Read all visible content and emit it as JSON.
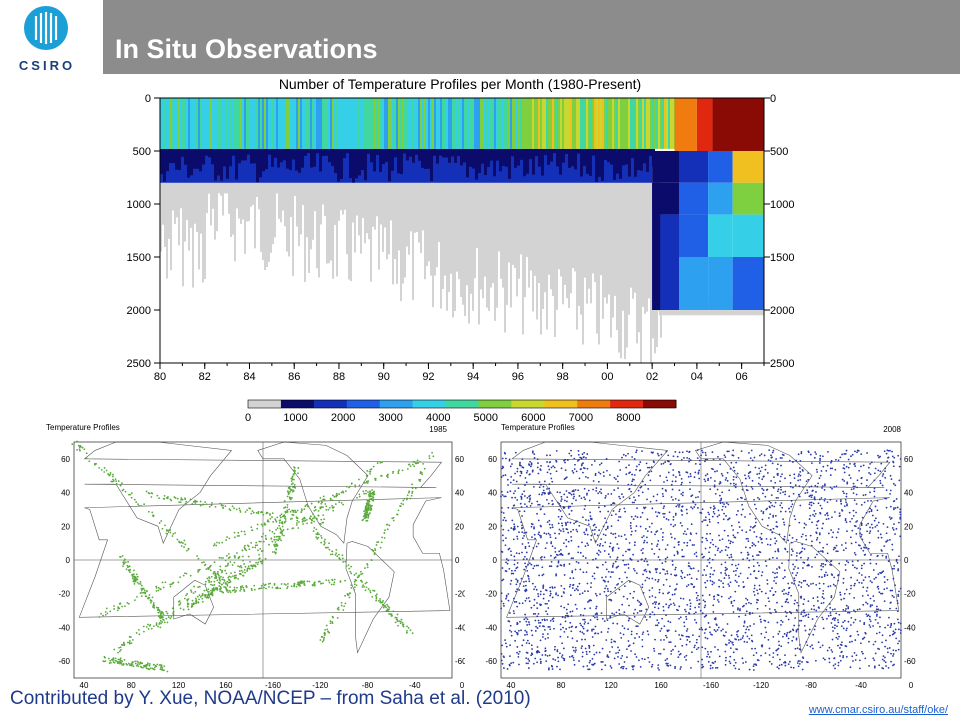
{
  "header": {
    "logo_text": "CSIRO",
    "title": "In Situ Observations"
  },
  "chart_data": [
    {
      "type": "heatmap",
      "title": "Number of Temperature Profiles per Month (1980-Present)",
      "x_tick_labels": [
        "80",
        "82",
        "84",
        "86",
        "88",
        "90",
        "92",
        "94",
        "96",
        "98",
        "00",
        "02",
        "04",
        "06"
      ],
      "y_tick_labels": [
        0,
        500,
        1000,
        1500,
        2000,
        2500
      ],
      "ylim": [
        2500,
        0
      ],
      "colorbar_ticks": [
        0,
        1000,
        2000,
        3000,
        4000,
        5000,
        6000,
        7000,
        8000
      ],
      "colorbar_range": [
        0,
        9000
      ],
      "colors": [
        "#d3d3d3",
        "#0b0b6b",
        "#1530b8",
        "#1f60e6",
        "#2ea0f0",
        "#35d0e8",
        "#40d8a0",
        "#7ed040",
        "#c8d830",
        "#f0c020",
        "#f07c10",
        "#e02810",
        "#8a0a05"
      ],
      "bands": [
        {
          "depth_range": [
            0,
            500
          ],
          "period": "1980-1991",
          "approx_count": 4500
        },
        {
          "depth_range": [
            0,
            500
          ],
          "period": "1991-2003",
          "approx_count": 5500
        },
        {
          "depth_range": [
            0,
            500
          ],
          "period": "2003-2007",
          "approx_count": 8500
        },
        {
          "depth_range": [
            500,
            800
          ],
          "period": "1980-2002",
          "approx_count": 1500
        },
        {
          "depth_range": [
            800,
            2000
          ],
          "period": "2002-2007",
          "approx_count": 3500
        }
      ]
    },
    {
      "type": "scatter",
      "title": "Temperature Profiles",
      "year": "1985",
      "series": [
        {
          "values": "ship-track observations"
        }
      ],
      "lat_ticks": [
        60,
        40,
        20,
        0,
        -20,
        -40,
        -60
      ],
      "lon_ticks": [
        40,
        80,
        120,
        160,
        -160,
        -120,
        -80,
        -40,
        0
      ],
      "point_color": "#5aaa3c"
    },
    {
      "type": "scatter",
      "title": "Temperature Profiles",
      "year": "2008",
      "series": [
        {
          "values": "profiling float observations"
        }
      ],
      "lat_ticks": [
        60,
        40,
        20,
        0,
        -20,
        -40,
        -60
      ],
      "lon_ticks": [
        40,
        80,
        120,
        160,
        -160,
        -120,
        -80,
        -40,
        0
      ],
      "point_color": "#2a3aa8"
    }
  ],
  "footer": {
    "credit": "Contributed by Y. Xue, NOAA/NCEP – from Saha et al. (2010)",
    "url": "www.cmar.csiro.au/staff/oke/"
  }
}
